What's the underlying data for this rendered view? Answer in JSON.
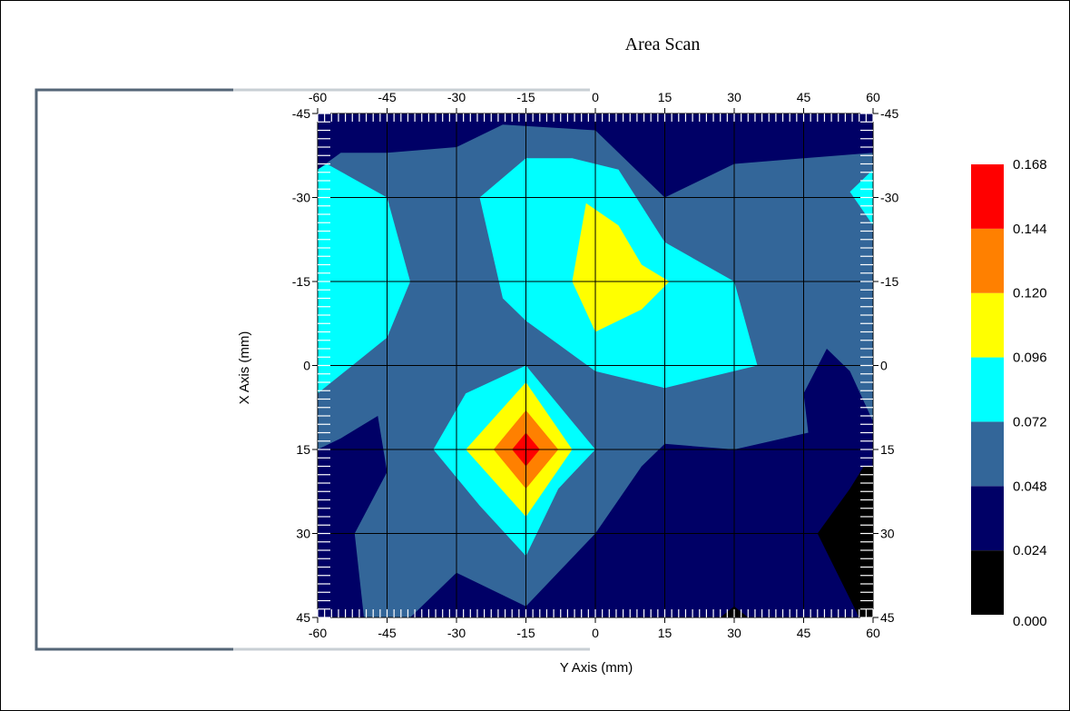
{
  "chart_data": {
    "type": "heatmap",
    "subtype": "filled contour",
    "title": "Area Scan",
    "xlabel": "Y Axis (mm)",
    "ylabel": "X Axis (mm)",
    "x_ticks": [
      -60,
      -45,
      -30,
      -15,
      0,
      15,
      30,
      45,
      60
    ],
    "y_ticks": [
      -45,
      -30,
      -15,
      0,
      15,
      30,
      45
    ],
    "x_tick_labels": [
      "-60",
      "-45",
      "-30",
      "-15",
      "0",
      "15",
      "30",
      "45",
      "60"
    ],
    "y_tick_labels": [
      "-45",
      "-30",
      "-15",
      "0",
      "15",
      "30",
      "45"
    ],
    "xlim": [
      -60,
      60
    ],
    "ylim": [
      -45,
      45
    ],
    "y_inverted": true,
    "grid": true,
    "legend_position": "right",
    "legend_levels": [
      "0.000",
      "0.024",
      "0.048",
      "0.072",
      "0.096",
      "0.120",
      "0.144",
      "0.168"
    ],
    "level_colors": [
      "#000000",
      "#000066",
      "#336699",
      "#00ffff",
      "#ffff00",
      "#ff8000",
      "#ff0000"
    ],
    "peak_regions": [
      {
        "y_mm": -15,
        "x_mm": 15,
        "level": 0.168
      },
      {
        "y_mm": 0,
        "x_mm": -20,
        "level": 0.12
      }
    ],
    "contours": [
      {
        "level": 0.048,
        "color": "#336699",
        "points": [
          [
            -60,
            -35
          ],
          [
            -55,
            -38
          ],
          [
            -45,
            -38
          ],
          [
            -30,
            -39
          ],
          [
            -20,
            -43
          ],
          [
            0,
            -42
          ],
          [
            15,
            -30
          ],
          [
            30,
            -36
          ],
          [
            45,
            -37
          ],
          [
            60,
            -38
          ],
          [
            60,
            10
          ],
          [
            55,
            1
          ],
          [
            50,
            -3
          ],
          [
            45,
            5
          ],
          [
            46,
            12
          ],
          [
            30,
            15
          ],
          [
            15,
            14
          ],
          [
            10,
            18
          ],
          [
            0,
            30
          ],
          [
            -15,
            43
          ],
          [
            -30,
            37
          ],
          [
            -40,
            45
          ],
          [
            -50,
            45
          ],
          [
            -52,
            30
          ],
          [
            -45,
            19
          ],
          [
            -47,
            9
          ],
          [
            -55,
            13
          ],
          [
            -60,
            15
          ]
        ]
      },
      {
        "level": 0.072,
        "color": "#00ffff",
        "points": [
          [
            -60,
            -35
          ],
          [
            -58,
            -36
          ],
          [
            -45,
            -30
          ],
          [
            -40,
            -15
          ],
          [
            -45,
            -5
          ],
          [
            -60,
            5
          ]
        ]
      },
      {
        "level": 0.072,
        "color": "#00ffff",
        "points": [
          [
            -25,
            -30
          ],
          [
            -15,
            -37
          ],
          [
            -5,
            -37
          ],
          [
            5,
            -35
          ],
          [
            15,
            -22
          ],
          [
            30,
            -15
          ],
          [
            35,
            0
          ],
          [
            15,
            4
          ],
          [
            0,
            1
          ],
          [
            -15,
            -8
          ],
          [
            -20,
            -12
          ]
        ]
      },
      {
        "level": 0.072,
        "color": "#00ffff",
        "points": [
          [
            -15,
            0
          ],
          [
            -5,
            10
          ],
          [
            0,
            15
          ],
          [
            -8,
            22
          ],
          [
            -15,
            34
          ],
          [
            -25,
            25
          ],
          [
            -35,
            15
          ],
          [
            -28,
            5
          ]
        ]
      },
      {
        "level": 0.072,
        "color": "#00ffff",
        "points": [
          [
            55,
            -31
          ],
          [
            60,
            -35
          ],
          [
            60,
            -25
          ]
        ]
      },
      {
        "level": 0.096,
        "color": "#ffff00",
        "points": [
          [
            -2,
            -29
          ],
          [
            5,
            -25
          ],
          [
            10,
            -18
          ],
          [
            16,
            -15
          ],
          [
            10,
            -10
          ],
          [
            0,
            -6
          ],
          [
            -5,
            -15
          ]
        ]
      },
      {
        "level": 0.096,
        "color": "#ffff00",
        "points": [
          [
            -15,
            3
          ],
          [
            -5,
            15
          ],
          [
            -15,
            27
          ],
          [
            -28,
            15
          ]
        ]
      },
      {
        "level": 0.12,
        "color": "#ff8000",
        "points": [
          [
            -15,
            8
          ],
          [
            -8,
            15
          ],
          [
            -15,
            22
          ],
          [
            -22,
            15
          ]
        ]
      },
      {
        "level": 0.144,
        "color": "#ff0000",
        "points": [
          [
            -15,
            12
          ],
          [
            -12,
            15
          ],
          [
            -15,
            18
          ],
          [
            -18,
            15
          ]
        ]
      },
      {
        "level": 0.0,
        "color": "#000000",
        "points": [
          [
            58,
            18
          ],
          [
            60,
            18
          ],
          [
            60,
            45
          ],
          [
            57,
            45
          ],
          [
            48,
            30
          ],
          [
            55,
            22
          ]
        ]
      },
      {
        "level": 0.0,
        "color": "#000000",
        "points": [
          [
            27,
            45
          ],
          [
            30,
            43
          ],
          [
            33,
            45
          ]
        ]
      }
    ]
  }
}
